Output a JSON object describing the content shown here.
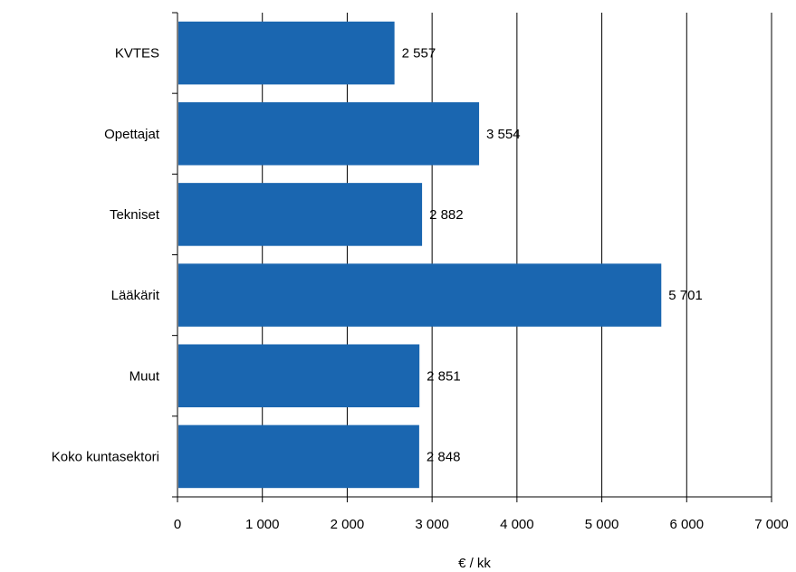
{
  "chart_data": {
    "type": "bar",
    "orientation": "horizontal",
    "categories": [
      "KVTES",
      "Opettajat",
      "Tekniset",
      "Lääkärit",
      "Muut",
      "Koko kuntasektori"
    ],
    "values": [
      2557,
      3554,
      2882,
      5701,
      2851,
      2848
    ],
    "value_labels": [
      "2 557",
      "3 554",
      "2 882",
      "5 701",
      "2 851",
      "2 848"
    ],
    "xlabel": "€ / kk",
    "xlim": [
      0,
      7000
    ],
    "ticks": [
      0,
      1000,
      2000,
      3000,
      4000,
      5000,
      6000,
      7000
    ],
    "tick_labels": [
      "0",
      "1 000",
      "2 000",
      "3 000",
      "4 000",
      "5 000",
      "6 000",
      "7 000"
    ],
    "grid": "vertical",
    "legend": "none",
    "colors": {
      "bar": "#1a66b0",
      "grid": "#000000",
      "axis": "#000000"
    }
  }
}
